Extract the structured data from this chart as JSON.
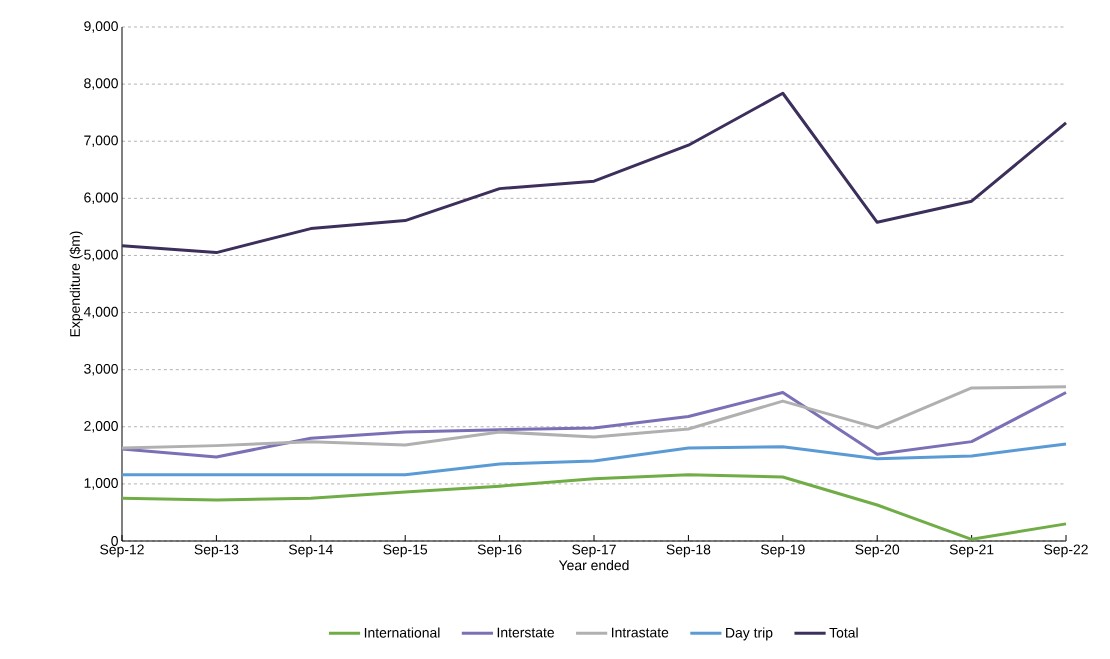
{
  "chart_data": {
    "type": "line",
    "xlabel": "Year ended",
    "ylabel": "Expenditure ($m)",
    "categories": [
      "Sep-12",
      "Sep-13",
      "Sep-14",
      "Sep-15",
      "Sep-16",
      "Sep-17",
      "Sep-18",
      "Sep-19",
      "Sep-20",
      "Sep-21",
      "Sep-22"
    ],
    "series": [
      {
        "name": "International",
        "color": "#70ad47",
        "values": [
          750,
          720,
          750,
          860,
          960,
          1090,
          1160,
          1120,
          630,
          30,
          300
        ]
      },
      {
        "name": "Interstate",
        "color": "#7b6fb5",
        "values": [
          1610,
          1470,
          1800,
          1910,
          1950,
          1980,
          2180,
          2600,
          1520,
          1740,
          2600
        ]
      },
      {
        "name": "Intrastate",
        "color": "#b0b0b0",
        "values": [
          1630,
          1670,
          1740,
          1680,
          1910,
          1820,
          1960,
          2450,
          1980,
          2680,
          2700
        ]
      },
      {
        "name": "Day trip",
        "color": "#5b9bd5",
        "values": [
          1160,
          1160,
          1160,
          1160,
          1350,
          1400,
          1630,
          1650,
          1440,
          1490,
          1700
        ]
      },
      {
        "name": "Total",
        "color": "#3c2f5b",
        "values": [
          5170,
          5050,
          5470,
          5610,
          6170,
          6300,
          6930,
          7840,
          5580,
          5950,
          7320
        ]
      }
    ],
    "ylim": [
      0,
      9000
    ],
    "yticks": [
      0,
      {
        "value": 1000,
        "label": "1,000"
      },
      {
        "value": 2000,
        "label": "2,000"
      },
      {
        "value": 3000,
        "label": "3,000"
      },
      {
        "value": 4000,
        "label": "4,000"
      },
      {
        "value": 5000,
        "label": "5,000"
      },
      {
        "value": 6000,
        "label": "6,000"
      },
      {
        "value": 7000,
        "label": "7,000"
      },
      {
        "value": 8000,
        "label": "8,000"
      },
      {
        "value": 9000,
        "label": "9,000"
      }
    ],
    "grid": "y",
    "legend": "bottom"
  }
}
